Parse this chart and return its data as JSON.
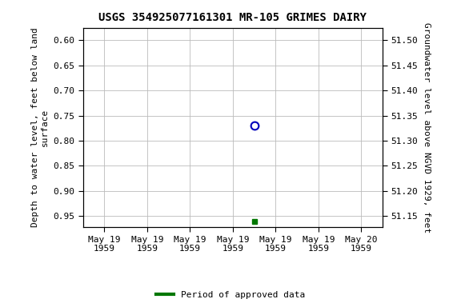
{
  "title": "USGS 354925077161301 MR-105 GRIMES DAIRY",
  "ylabel_left_lines": [
    "Depth to water level, feet below land",
    "surface"
  ],
  "ylabel_right": "Groundwater level above NGVD 1929, feet",
  "ylim_left": [
    0.575,
    0.972
  ],
  "ylim_left_ticks": [
    0.6,
    0.65,
    0.7,
    0.75,
    0.8,
    0.85,
    0.9,
    0.95
  ],
  "ylim_right": [
    51.128,
    51.525
  ],
  "ylim_right_ticks": [
    51.5,
    51.45,
    51.4,
    51.35,
    51.3,
    51.25,
    51.2,
    51.15
  ],
  "data_point_x": 3.5,
  "data_point_y_circle": 0.77,
  "data_point_y_square": 0.96,
  "circle_color": "#0000bb",
  "square_color": "#007700",
  "xtick_labels": [
    "May 19\n1959",
    "May 19\n1959",
    "May 19\n1959",
    "May 19\n1959",
    "May 19\n1959",
    "May 19\n1959",
    "May 20\n1959"
  ],
  "n_xticks": 7,
  "legend_label": "Period of approved data",
  "legend_color": "#007700",
  "grid_color": "#bbbbbb",
  "background_color": "#ffffff",
  "title_fontsize": 10,
  "axis_label_fontsize": 8,
  "tick_fontsize": 8,
  "x_range": [
    -0.5,
    6.5
  ],
  "x_tick_positions": [
    0,
    1,
    2,
    3,
    4,
    5,
    6
  ]
}
